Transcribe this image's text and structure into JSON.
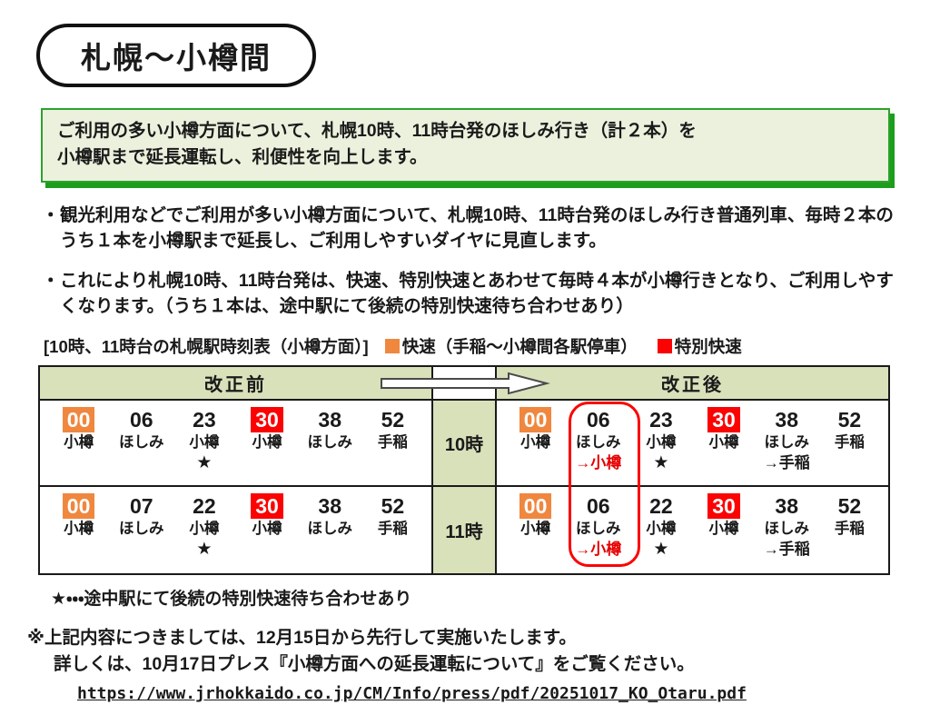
{
  "title": "札幌～小樽間",
  "highlight_box": {
    "line1": "ご利用の多い小樽方面について、札幌10時、11時台発のほしみ行き（計２本）を",
    "line2": "小樽駅まで延長運転し、利便性を向上します。"
  },
  "bullets": [
    {
      "marker": "・",
      "text": "観光利用などでご利用が多い小樽方面について、札幌10時、11時台発のほしみ行き普通列車、毎時２本のうち１本を小樽駅まで延長し、ご利用しやすいダイヤに見直します。"
    },
    {
      "marker": "・",
      "text": "これにより札幌10時、11時台発は、快速、特別快速とあわせて毎時４本が小樽行きとなり、ご利用しやすくなります。（うち１本は、途中駅にて後続の特別快速待ち合わせあり）"
    }
  ],
  "timetable": {
    "caption": "[10時、11時台の札幌駅時刻表（小樽方面）]",
    "legend": [
      {
        "color": "#f0873f",
        "label": "快速（手稲～小樽間各駅停車）"
      },
      {
        "color": "#fb0303",
        "label": "特別快速"
      }
    ],
    "col_before": "改正前",
    "col_after": "改正後",
    "rows": [
      {
        "hour": "10時",
        "before": [
          {
            "time": "00",
            "dest": "小樽",
            "type": "rapid"
          },
          {
            "time": "06",
            "dest": "ほしみ"
          },
          {
            "time": "23",
            "dest": "小樽",
            "note": "★",
            "note_style": "star"
          },
          {
            "time": "30",
            "dest": "小樽",
            "type": "special"
          },
          {
            "time": "38",
            "dest": "ほしみ"
          },
          {
            "time": "52",
            "dest": "手稲"
          }
        ],
        "after": [
          {
            "time": "00",
            "dest": "小樽",
            "type": "rapid"
          },
          {
            "time": "06",
            "dest": "ほしみ",
            "note": "→小樽",
            "note_style": "red"
          },
          {
            "time": "23",
            "dest": "小樽",
            "note": "★",
            "note_style": "star"
          },
          {
            "time": "30",
            "dest": "小樽",
            "type": "special"
          },
          {
            "time": "38",
            "dest": "ほしみ",
            "note": "→手稲",
            "note_style": "black"
          },
          {
            "time": "52",
            "dest": "手稲"
          }
        ]
      },
      {
        "hour": "11時",
        "before": [
          {
            "time": "00",
            "dest": "小樽",
            "type": "rapid"
          },
          {
            "time": "07",
            "dest": "ほしみ"
          },
          {
            "time": "22",
            "dest": "小樽",
            "note": "★",
            "note_style": "star"
          },
          {
            "time": "30",
            "dest": "小樽",
            "type": "special"
          },
          {
            "time": "38",
            "dest": "ほしみ"
          },
          {
            "time": "52",
            "dest": "手稲"
          }
        ],
        "after": [
          {
            "time": "00",
            "dest": "小樽",
            "type": "rapid"
          },
          {
            "time": "06",
            "dest": "ほしみ",
            "note": "→小樽",
            "note_style": "red"
          },
          {
            "time": "22",
            "dest": "小樽",
            "note": "★",
            "note_style": "star"
          },
          {
            "time": "30",
            "dest": "小樽",
            "type": "special"
          },
          {
            "time": "38",
            "dest": "ほしみ",
            "note": "→手稲",
            "note_style": "black"
          },
          {
            "time": "52",
            "dest": "手稲"
          }
        ]
      }
    ],
    "star_note": "★・・・途中駅にて後続の特別快速待ち合わせあり"
  },
  "footer": {
    "note1": "※上記内容につきましては、12月15日から先行して実施いたします。",
    "note2": "詳しくは、10月17日プレス『小樽方面への延長運転について』をご覧ください。",
    "url": "https://www.jrhokkaido.co.jp/CM/Info/press/pdf/20251017_KO_Otaru.pdf"
  },
  "colors": {
    "rapid_orange": "#f0873f",
    "special_red": "#fb0303",
    "table_green": "#d8e1ba",
    "box_green_bg": "#ebf1dd",
    "box_green_border": "#2da12d"
  }
}
